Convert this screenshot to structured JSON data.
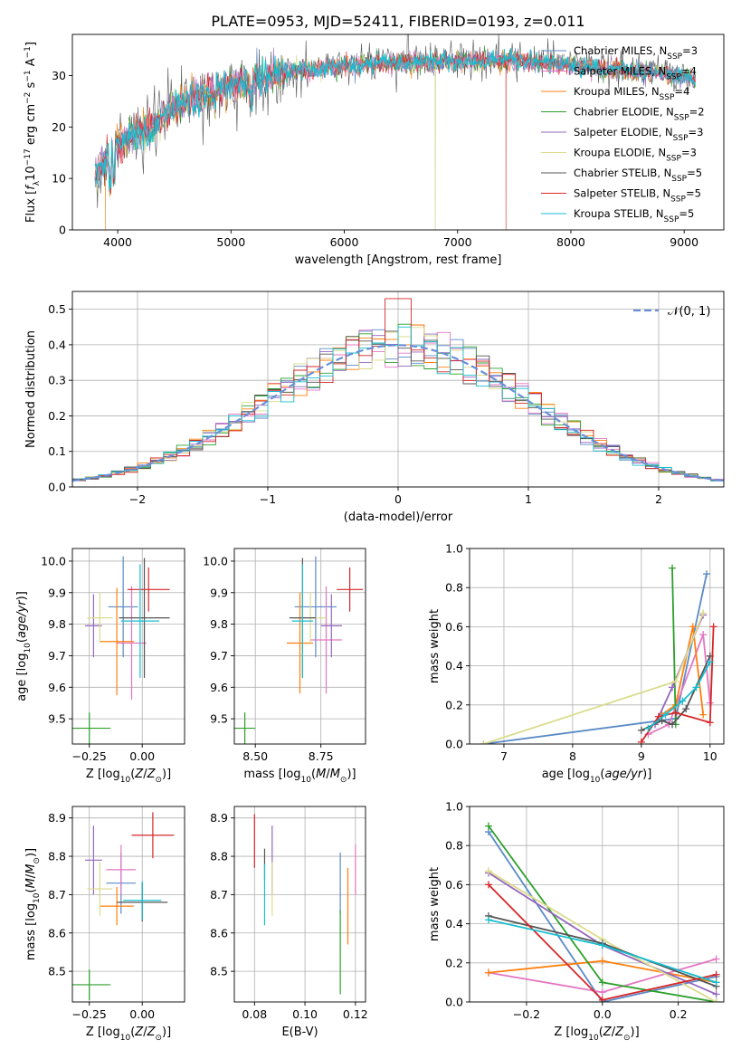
{
  "title": "PLATE=0953, MJD=52411, FIBERID=0193, z=0.011",
  "colors": {
    "Chabrier MILES": "#5a8ac6",
    "Salpeter MILES": "#e377c2",
    "Kroupa MILES": "#ff7f0e",
    "Chabrier ELODIE": "#2ca02c",
    "Salpeter ELODIE": "#9467bd",
    "Kroupa ELODIE": "#dbdb8d",
    "Chabrier STELIB": "#555555",
    "Salpeter STELIB": "#d62728",
    "Kroupa STELIB": "#17becf"
  },
  "legend1": [
    {
      "name": "Chabrier MILES",
      "n": "3",
      "color": "#5a8ac6"
    },
    {
      "name": "Salpeter MILES",
      "n": "4",
      "color": "#e377c2"
    },
    {
      "name": "Kroupa MILES",
      "n": "4",
      "color": "#ff7f0e"
    },
    {
      "name": "Chabrier ELODIE",
      "n": "2",
      "color": "#2ca02c"
    },
    {
      "name": "Salpeter ELODIE",
      "n": "3",
      "color": "#9467bd"
    },
    {
      "name": "Kroupa ELODIE",
      "n": "3",
      "color": "#dbdb8d"
    },
    {
      "name": "Chabrier STELIB",
      "n": "5",
      "color": "#555555"
    },
    {
      "name": "Salpeter STELIB",
      "n": "5",
      "color": "#d62728"
    },
    {
      "name": "Kroupa STELIB",
      "n": "5",
      "color": "#17becf"
    }
  ],
  "legend_nssp": "N",
  "legend_nssp_sub": "SSP",
  "legend2": "𝒩(0, 1)",
  "chart_data": [
    {
      "id": "spectrum",
      "type": "line",
      "xlabel": "wavelength [Angstrom, rest frame]",
      "ylabel": "Flux [f",
      "ylabel_full": "Flux [fλ10⁻¹⁷ erg cm⁻² s⁻¹ A⁻¹]",
      "xlim": [
        3600,
        9350
      ],
      "ylim": [
        0,
        38
      ],
      "xticks": [
        4000,
        5000,
        6000,
        7000,
        8000,
        9000
      ],
      "yticks": [
        0,
        10,
        20,
        30
      ],
      "x_start": 3800,
      "x_end": 9100,
      "continuum": [
        [
          3800,
          11
        ],
        [
          3900,
          14
        ],
        [
          4000,
          17
        ],
        [
          4100,
          18
        ],
        [
          4200,
          19
        ],
        [
          4300,
          20
        ],
        [
          4400,
          22
        ],
        [
          4500,
          24
        ],
        [
          4600,
          25
        ],
        [
          4700,
          26
        ],
        [
          4800,
          27
        ],
        [
          4900,
          27.5
        ],
        [
          5000,
          28
        ],
        [
          5200,
          29
        ],
        [
          5500,
          30.5
        ],
        [
          6000,
          32
        ],
        [
          6500,
          32.5
        ],
        [
          7000,
          32.8
        ],
        [
          7500,
          33
        ],
        [
          8000,
          32
        ],
        [
          8500,
          31
        ],
        [
          9000,
          30
        ],
        [
          9100,
          29
        ]
      ]
    },
    {
      "id": "residuals",
      "type": "step",
      "xlabel": "(data-model)/error",
      "ylabel": "Normed distribution",
      "xlim": [
        -2.5,
        2.5
      ],
      "ylim": [
        0,
        0.55
      ],
      "xticks": [
        -2,
        -1,
        0,
        1,
        2
      ],
      "yticks": [
        0.0,
        0.1,
        0.2,
        0.3,
        0.4,
        0.5
      ],
      "bin_width": 0.1
    },
    {
      "id": "age_vs_Z",
      "type": "errorbar",
      "xlabel": "Z [log10(Z/Z⊙)]",
      "ylabel": "age [log10(age/yr)]",
      "xlim": [
        -0.33,
        0.2
      ],
      "ylim": [
        9.42,
        10.04
      ],
      "xticks": [
        -0.25,
        0.0
      ],
      "yticks": [
        9.5,
        9.6,
        9.7,
        9.8,
        9.9,
        10.0
      ],
      "points": [
        {
          "series": "Chabrier MILES",
          "x": -0.09,
          "y": 9.855,
          "xerr": 0.07,
          "yerr": 0.16
        },
        {
          "series": "Salpeter MILES",
          "x": -0.05,
          "y": 9.74,
          "xerr": 0.07,
          "yerr": 0.18
        },
        {
          "series": "Kroupa MILES",
          "x": -0.12,
          "y": 9.745,
          "xerr": 0.08,
          "yerr": 0.17
        },
        {
          "series": "Chabrier ELODIE",
          "x": -0.25,
          "y": 9.47,
          "xerr": 0.1,
          "yerr": 0.05
        },
        {
          "series": "Salpeter ELODIE",
          "x": -0.23,
          "y": 9.795,
          "xerr": 0.04,
          "yerr": 0.1
        },
        {
          "series": "Kroupa ELODIE",
          "x": -0.2,
          "y": 9.82,
          "xerr": 0.06,
          "yerr": 0.08
        },
        {
          "series": "Chabrier STELIB",
          "x": 0.01,
          "y": 9.82,
          "xerr": 0.12,
          "yerr": 0.19
        },
        {
          "series": "Salpeter STELIB",
          "x": 0.03,
          "y": 9.91,
          "xerr": 0.1,
          "yerr": 0.07
        },
        {
          "series": "Kroupa STELIB",
          "x": -0.01,
          "y": 9.81,
          "xerr": 0.09,
          "yerr": 0.18
        }
      ]
    },
    {
      "id": "age_vs_mass",
      "type": "errorbar",
      "xlabel": "mass [log10(M/M⊙)]",
      "ylabel": "",
      "xlim": [
        8.42,
        8.92
      ],
      "ylim": [
        9.42,
        10.04
      ],
      "xticks": [
        8.5,
        8.75
      ],
      "yticks": [
        9.5,
        9.6,
        9.7,
        9.8,
        9.9,
        10.0
      ],
      "points": [
        {
          "series": "Chabrier MILES",
          "x": 8.73,
          "y": 9.855,
          "xerr": 0.08,
          "yerr": 0.16
        },
        {
          "series": "Salpeter MILES",
          "x": 8.77,
          "y": 9.75,
          "xerr": 0.06,
          "yerr": 0.17
        },
        {
          "series": "Kroupa MILES",
          "x": 8.67,
          "y": 9.74,
          "xerr": 0.05,
          "yerr": 0.16
        },
        {
          "series": "Chabrier ELODIE",
          "x": 8.46,
          "y": 9.47,
          "xerr": 0.04,
          "yerr": 0.05
        },
        {
          "series": "Salpeter ELODIE",
          "x": 8.79,
          "y": 9.795,
          "xerr": 0.04,
          "yerr": 0.1
        },
        {
          "series": "Kroupa ELODIE",
          "x": 8.71,
          "y": 9.82,
          "xerr": 0.06,
          "yerr": 0.08
        },
        {
          "series": "Chabrier STELIB",
          "x": 8.68,
          "y": 9.82,
          "xerr": 0.05,
          "yerr": 0.19
        },
        {
          "series": "Salpeter STELIB",
          "x": 8.86,
          "y": 9.91,
          "xerr": 0.05,
          "yerr": 0.07
        },
        {
          "series": "Kroupa STELIB",
          "x": 8.68,
          "y": 9.81,
          "xerr": 0.04,
          "yerr": 0.18
        }
      ]
    },
    {
      "id": "weight_vs_age",
      "type": "line",
      "xlabel": "age [log10(age/yr)]",
      "ylabel": "mass weight",
      "xlim": [
        6.5,
        10.2
      ],
      "ylim": [
        0,
        1.0
      ],
      "xticks": [
        7,
        8,
        9,
        10
      ],
      "yticks": [
        0.0,
        0.2,
        0.4,
        0.6,
        0.8,
        1.0
      ],
      "series": [
        {
          "name": "Chabrier MILES",
          "x": [
            6.7,
            9.5,
            9.95
          ],
          "y": [
            0.0,
            0.13,
            0.87
          ]
        },
        {
          "name": "Salpeter MILES",
          "x": [
            9.1,
            9.4,
            9.9,
            10.0
          ],
          "y": [
            0.05,
            0.1,
            0.56,
            0.21
          ]
        },
        {
          "name": "Kroupa MILES",
          "x": [
            9.3,
            9.5,
            9.75,
            9.9
          ],
          "y": [
            0.15,
            0.2,
            0.6,
            0.15
          ]
        },
        {
          "name": "Chabrier ELODIE",
          "x": [
            9.45,
            9.5
          ],
          "y": [
            0.9,
            0.1
          ]
        },
        {
          "name": "Salpeter ELODIE",
          "x": [
            9.2,
            9.45,
            9.9
          ],
          "y": [
            0.1,
            0.29,
            0.66
          ]
        },
        {
          "name": "Kroupa ELODIE",
          "x": [
            6.7,
            9.5,
            9.9
          ],
          "y": [
            0.0,
            0.32,
            0.67
          ]
        },
        {
          "name": "Chabrier STELIB",
          "x": [
            9.0,
            9.3,
            9.45,
            9.65,
            10.0
          ],
          "y": [
            0.07,
            0.12,
            0.1,
            0.18,
            0.45
          ]
        },
        {
          "name": "Salpeter STELIB",
          "x": [
            9.0,
            9.25,
            9.5,
            10.0,
            10.05
          ],
          "y": [
            0.01,
            0.14,
            0.16,
            0.11,
            0.6
          ]
        },
        {
          "name": "Kroupa STELIB",
          "x": [
            9.1,
            9.35,
            9.6,
            9.8,
            10.0
          ],
          "y": [
            0.08,
            0.15,
            0.22,
            0.29,
            0.42
          ]
        }
      ]
    },
    {
      "id": "mass_vs_Z",
      "type": "errorbar",
      "xlabel": "Z [log10(Z/Z⊙)]",
      "ylabel": "mass [log10(M/M⊙)]",
      "xlim": [
        -0.33,
        0.2
      ],
      "ylim": [
        8.42,
        8.93
      ],
      "xticks": [
        -0.25,
        0.0
      ],
      "yticks": [
        8.5,
        8.6,
        8.7,
        8.8,
        8.9
      ],
      "points": [
        {
          "series": "Chabrier MILES",
          "x": -0.1,
          "y": 8.73,
          "xerr": 0.07,
          "yerr": 0.08
        },
        {
          "series": "Salpeter MILES",
          "x": -0.1,
          "y": 8.765,
          "xerr": 0.07,
          "yerr": 0.065
        },
        {
          "series": "Kroupa MILES",
          "x": -0.12,
          "y": 8.67,
          "xerr": 0.08,
          "yerr": 0.05
        },
        {
          "series": "Chabrier ELODIE",
          "x": -0.25,
          "y": 8.465,
          "xerr": 0.1,
          "yerr": 0.04
        },
        {
          "series": "Salpeter ELODIE",
          "x": -0.23,
          "y": 8.79,
          "xerr": 0.04,
          "yerr": 0.09
        },
        {
          "series": "Kroupa ELODIE",
          "x": -0.2,
          "y": 8.715,
          "xerr": 0.06,
          "yerr": 0.07
        },
        {
          "series": "Chabrier STELIB",
          "x": 0.0,
          "y": 8.68,
          "xerr": 0.12,
          "yerr": 0.05
        },
        {
          "series": "Salpeter STELIB",
          "x": 0.05,
          "y": 8.855,
          "xerr": 0.1,
          "yerr": 0.06
        },
        {
          "series": "Kroupa STELIB",
          "x": 0.0,
          "y": 8.685,
          "xerr": 0.09,
          "yerr": 0.05
        }
      ]
    },
    {
      "id": "mass_vs_ebv",
      "type": "errorbar",
      "xlabel": "E(B-V)",
      "ylabel": "",
      "xlim": [
        0.072,
        0.124
      ],
      "ylim": [
        8.42,
        8.93
      ],
      "xticks": [
        0.08,
        0.1,
        0.12
      ],
      "yticks": [
        8.5,
        8.6,
        8.7,
        8.8,
        8.9
      ],
      "points": [
        {
          "series": "Chabrier MILES",
          "x": 0.114,
          "y": 8.73,
          "xerr": 0,
          "yerr": 0.08
        },
        {
          "series": "Salpeter MILES",
          "x": 0.12,
          "y": 8.765,
          "xerr": 0,
          "yerr": 0.065
        },
        {
          "series": "Kroupa MILES",
          "x": 0.117,
          "y": 8.67,
          "xerr": 0,
          "yerr": 0.1
        },
        {
          "series": "Chabrier ELODIE",
          "x": 0.114,
          "y": 8.55,
          "xerr": 0,
          "yerr": 0.11
        },
        {
          "series": "Salpeter ELODIE",
          "x": 0.087,
          "y": 8.79,
          "xerr": 0,
          "yerr": 0.09
        },
        {
          "series": "Kroupa ELODIE",
          "x": 0.087,
          "y": 8.715,
          "xerr": 0,
          "yerr": 0.07
        },
        {
          "series": "Chabrier STELIB",
          "x": 0.084,
          "y": 8.78,
          "xerr": 0,
          "yerr": 0.04
        },
        {
          "series": "Salpeter STELIB",
          "x": 0.08,
          "y": 8.84,
          "xerr": 0,
          "yerr": 0.07
        },
        {
          "series": "Kroupa STELIB",
          "x": 0.084,
          "y": 8.7,
          "xerr": 0,
          "yerr": 0.08
        }
      ]
    },
    {
      "id": "weight_vs_Z",
      "type": "line",
      "xlabel": "Z [log10(Z/Z⊙)]",
      "ylabel": "mass weight",
      "xlim": [
        -0.35,
        0.32
      ],
      "ylim": [
        0,
        1.0
      ],
      "xticks": [
        -0.2,
        0.0,
        0.2
      ],
      "yticks": [
        0.0,
        0.2,
        0.4,
        0.6,
        0.8,
        1.0
      ],
      "series": [
        {
          "name": "Chabrier MILES",
          "x": [
            -0.3,
            0.0,
            0.3
          ],
          "y": [
            0.87,
            0.0,
            0.13
          ]
        },
        {
          "name": "Salpeter MILES",
          "x": [
            -0.3,
            0.0,
            0.3
          ],
          "y": [
            0.15,
            0.05,
            0.22
          ]
        },
        {
          "name": "Kroupa MILES",
          "x": [
            -0.3,
            0.0,
            0.3
          ],
          "y": [
            0.15,
            0.21,
            0.1
          ]
        },
        {
          "name": "Chabrier ELODIE",
          "x": [
            -0.3,
            0.0,
            0.3
          ],
          "y": [
            0.9,
            0.1,
            0.0
          ]
        },
        {
          "name": "Salpeter ELODIE",
          "x": [
            -0.3,
            0.0,
            0.3
          ],
          "y": [
            0.66,
            0.29,
            0.04
          ]
        },
        {
          "name": "Kroupa ELODIE",
          "x": [
            -0.3,
            0.0,
            0.3
          ],
          "y": [
            0.67,
            0.32,
            0.0
          ]
        },
        {
          "name": "Chabrier STELIB",
          "x": [
            -0.3,
            0.0,
            0.3
          ],
          "y": [
            0.44,
            0.3,
            0.08
          ]
        },
        {
          "name": "Salpeter STELIB",
          "x": [
            -0.3,
            0.0,
            0.3
          ],
          "y": [
            0.6,
            0.01,
            0.14
          ]
        },
        {
          "name": "Kroupa STELIB",
          "x": [
            -0.3,
            0.0,
            0.3
          ],
          "y": [
            0.42,
            0.29,
            0.1
          ]
        }
      ]
    }
  ]
}
